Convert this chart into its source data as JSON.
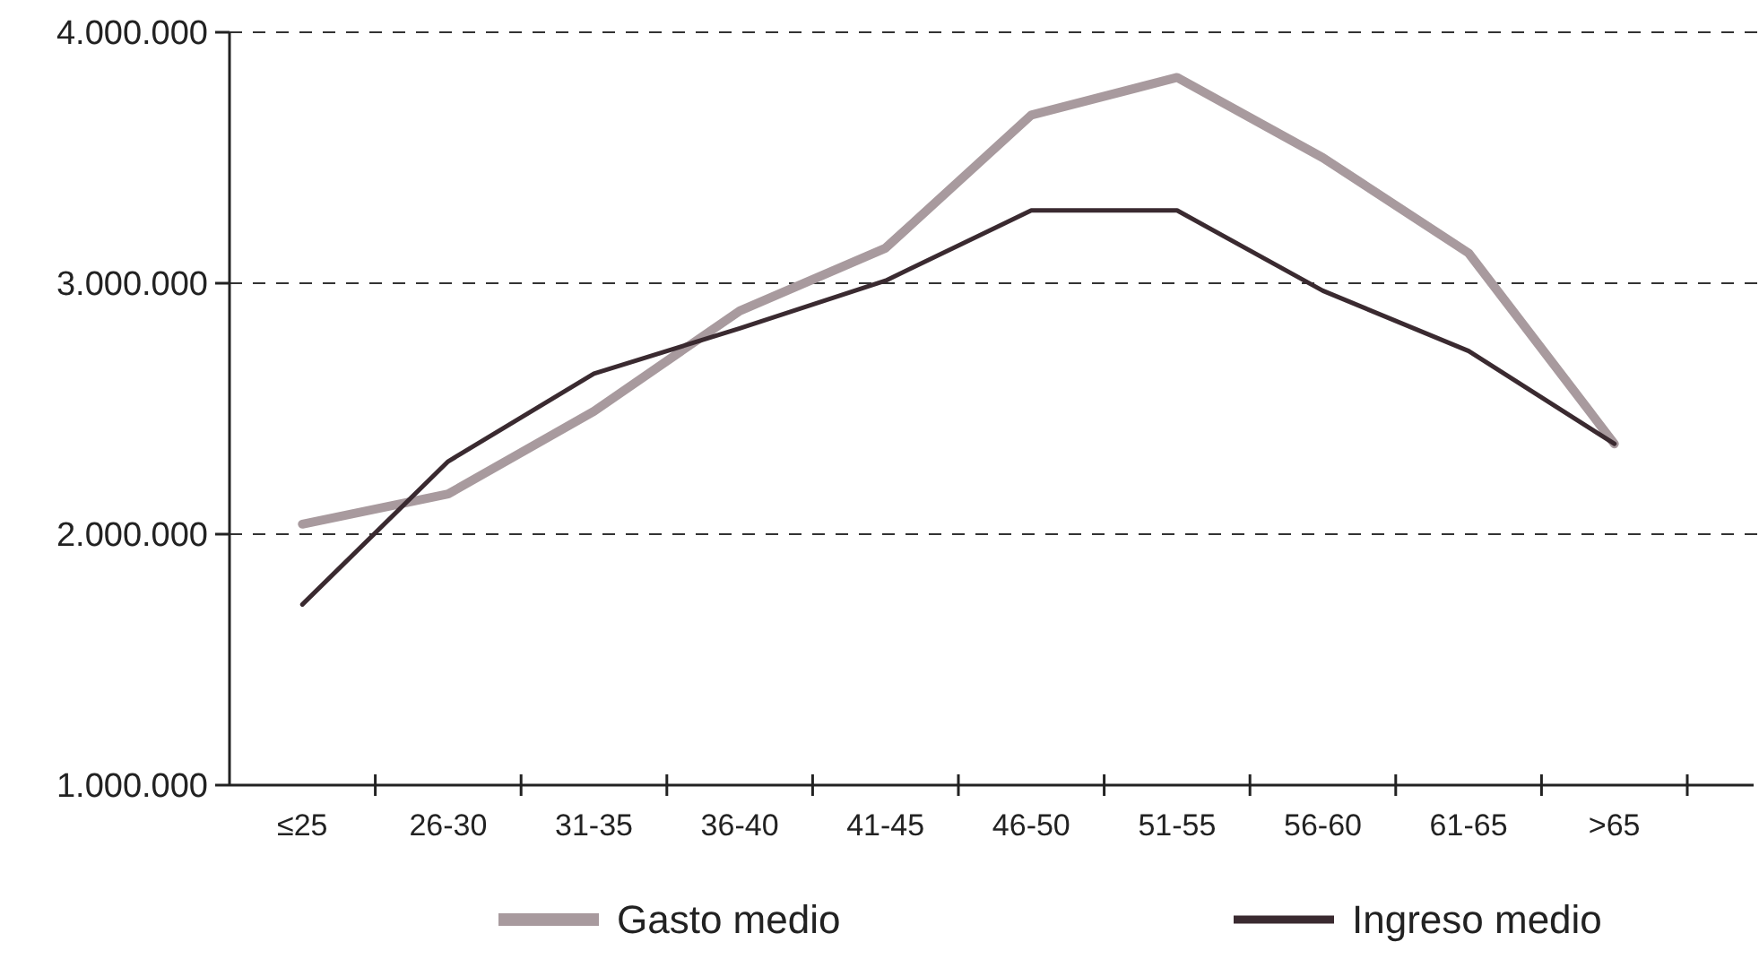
{
  "chart_data": {
    "type": "line",
    "categories": [
      "≤25",
      "26-30",
      "31-35",
      "36-40",
      "41-45",
      "46-50",
      "51-55",
      "56-60",
      "61-65",
      ">65"
    ],
    "series": [
      {
        "name": "Gasto medio",
        "color": "#a89a9e",
        "values": [
          2040000,
          2160000,
          2490000,
          2890000,
          3140000,
          3670000,
          3820000,
          3500000,
          3120000,
          2360000
        ]
      },
      {
        "name": "Ingreso medio",
        "color": "#3a2a30",
        "values": [
          1720000,
          2290000,
          2640000,
          2820000,
          3010000,
          3290000,
          3290000,
          2970000,
          2730000,
          2360000
        ]
      }
    ],
    "ylim": [
      1000000,
      4000000
    ],
    "yticks": [
      {
        "value": 1000000,
        "label": "1.000.000"
      },
      {
        "value": 2000000,
        "label": "2.000.000"
      },
      {
        "value": 3000000,
        "label": "3.000.000"
      },
      {
        "value": 4000000,
        "label": "4.000.000"
      }
    ],
    "grid": "y",
    "legend": "bottom",
    "marker": "none",
    "line_style": "solid"
  }
}
